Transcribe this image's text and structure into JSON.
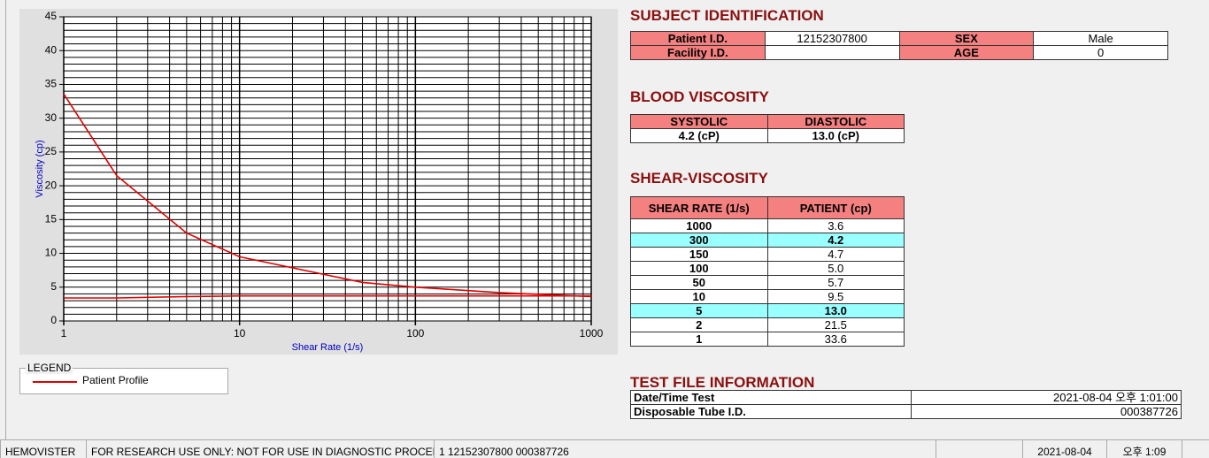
{
  "chart": {
    "type": "line",
    "x_label": "Shear Rate (1/s)",
    "y_label": "Viscosity (cp)",
    "xscale": "log",
    "xlim": [
      1,
      1000
    ],
    "xticks": [
      1,
      10,
      100,
      1000
    ],
    "ylim": [
      0,
      45
    ],
    "yticks": [
      0,
      5,
      10,
      15,
      20,
      25,
      30,
      35,
      40,
      45
    ],
    "grid": true,
    "minor_grid": true,
    "x": [
      1,
      2,
      5,
      10,
      50,
      100,
      150,
      300,
      1000
    ],
    "series": [
      {
        "name": "Patient Profile",
        "color": "#e00000",
        "values": [
          33.6,
          21.5,
          13.0,
          9.5,
          5.7,
          5.0,
          4.7,
          4.2,
          3.6
        ]
      },
      {
        "color": "#e00000",
        "values": [
          3.4,
          3.4,
          3.6,
          3.7,
          3.7,
          3.7,
          3.7,
          3.7,
          3.7
        ]
      }
    ],
    "legend_title": "LEGEND"
  },
  "subject_identification": {
    "title": "SUBJECT IDENTIFICATION",
    "rows": [
      [
        "Patient I.D.",
        "12152307800",
        "SEX",
        "Male"
      ],
      [
        "Facility I.D.",
        null,
        "AGE",
        "0"
      ]
    ]
  },
  "blood_viscosity": {
    "title": "BLOOD VISCOSITY",
    "headers": [
      "SYSTOLIC",
      "DIASTOLIC"
    ],
    "values": [
      "4.2 (cP)",
      "13.0 (cP)"
    ]
  },
  "shear_viscosity": {
    "title": "SHEAR-VISCOSITY",
    "headers": [
      "SHEAR RATE (1/s)",
      "PATIENT (cp)"
    ],
    "rows": [
      {
        "shear_rate": "1000",
        "patient": "3.6",
        "highlight": false
      },
      {
        "shear_rate": "300",
        "patient": "4.2",
        "highlight": true
      },
      {
        "shear_rate": "150",
        "patient": "4.7",
        "highlight": false
      },
      {
        "shear_rate": "100",
        "patient": "5.0",
        "highlight": false
      },
      {
        "shear_rate": "50",
        "patient": "5.7",
        "highlight": false
      },
      {
        "shear_rate": "10",
        "patient": "9.5",
        "highlight": false
      },
      {
        "shear_rate": "5",
        "patient": "13.0",
        "highlight": true
      },
      {
        "shear_rate": "2",
        "patient": "21.5",
        "highlight": false
      },
      {
        "shear_rate": "1",
        "patient": "33.6",
        "highlight": false
      }
    ]
  },
  "test_file": {
    "title": "TEST FILE INFORMATION",
    "rows": [
      [
        "Date/Time Test",
        "2021-08-04   오후 1:01:00"
      ],
      [
        "Disposable Tube I.D.",
        "000387726"
      ]
    ]
  },
  "status_bar": [
    "HEMOVISTER",
    "FOR RESEARCH USE ONLY: NOT FOR USE IN DIAGNOSTIC PROCEDURES",
    "1  12152307800  000387726",
    null,
    "2021-08-04",
    "오후 1:09"
  ]
}
